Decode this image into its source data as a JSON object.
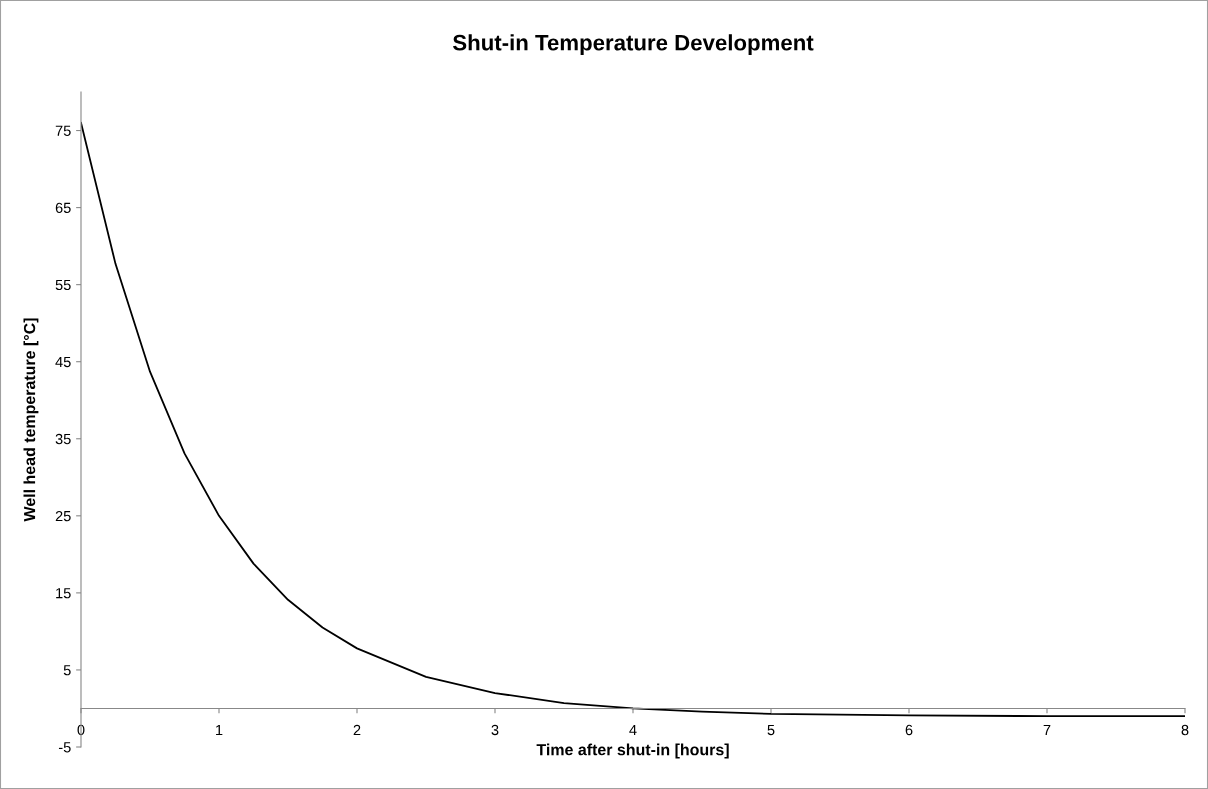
{
  "chart_data": {
    "type": "line",
    "title": "Shut-in Temperature Development",
    "xlabel": "Time after shut-in [hours]",
    "ylabel": "Well head temperature [°C]",
    "x": [
      0,
      0.25,
      0.5,
      0.75,
      1,
      1.25,
      1.5,
      1.75,
      2,
      2.5,
      3,
      3.5,
      4,
      4.5,
      5,
      6,
      7,
      8
    ],
    "series": [
      {
        "color": "#000000",
        "values": [
          76,
          57.7,
          43.7,
          33.1,
          25.0,
          18.8,
          14.1,
          10.5,
          7.8,
          4.1,
          2.0,
          0.7,
          0.0,
          -0.4,
          -0.7,
          -0.9,
          -1.0,
          -1.0
        ]
      }
    ],
    "xlim": [
      0,
      8
    ],
    "xticks": [
      0,
      1,
      2,
      3,
      4,
      5,
      6,
      7,
      8
    ],
    "ylim": [
      -5,
      80
    ],
    "yticks": [
      -5,
      5,
      15,
      25,
      35,
      45,
      55,
      65,
      75
    ],
    "grid": false,
    "legend": false,
    "marker": "none",
    "line_style": "solid"
  }
}
